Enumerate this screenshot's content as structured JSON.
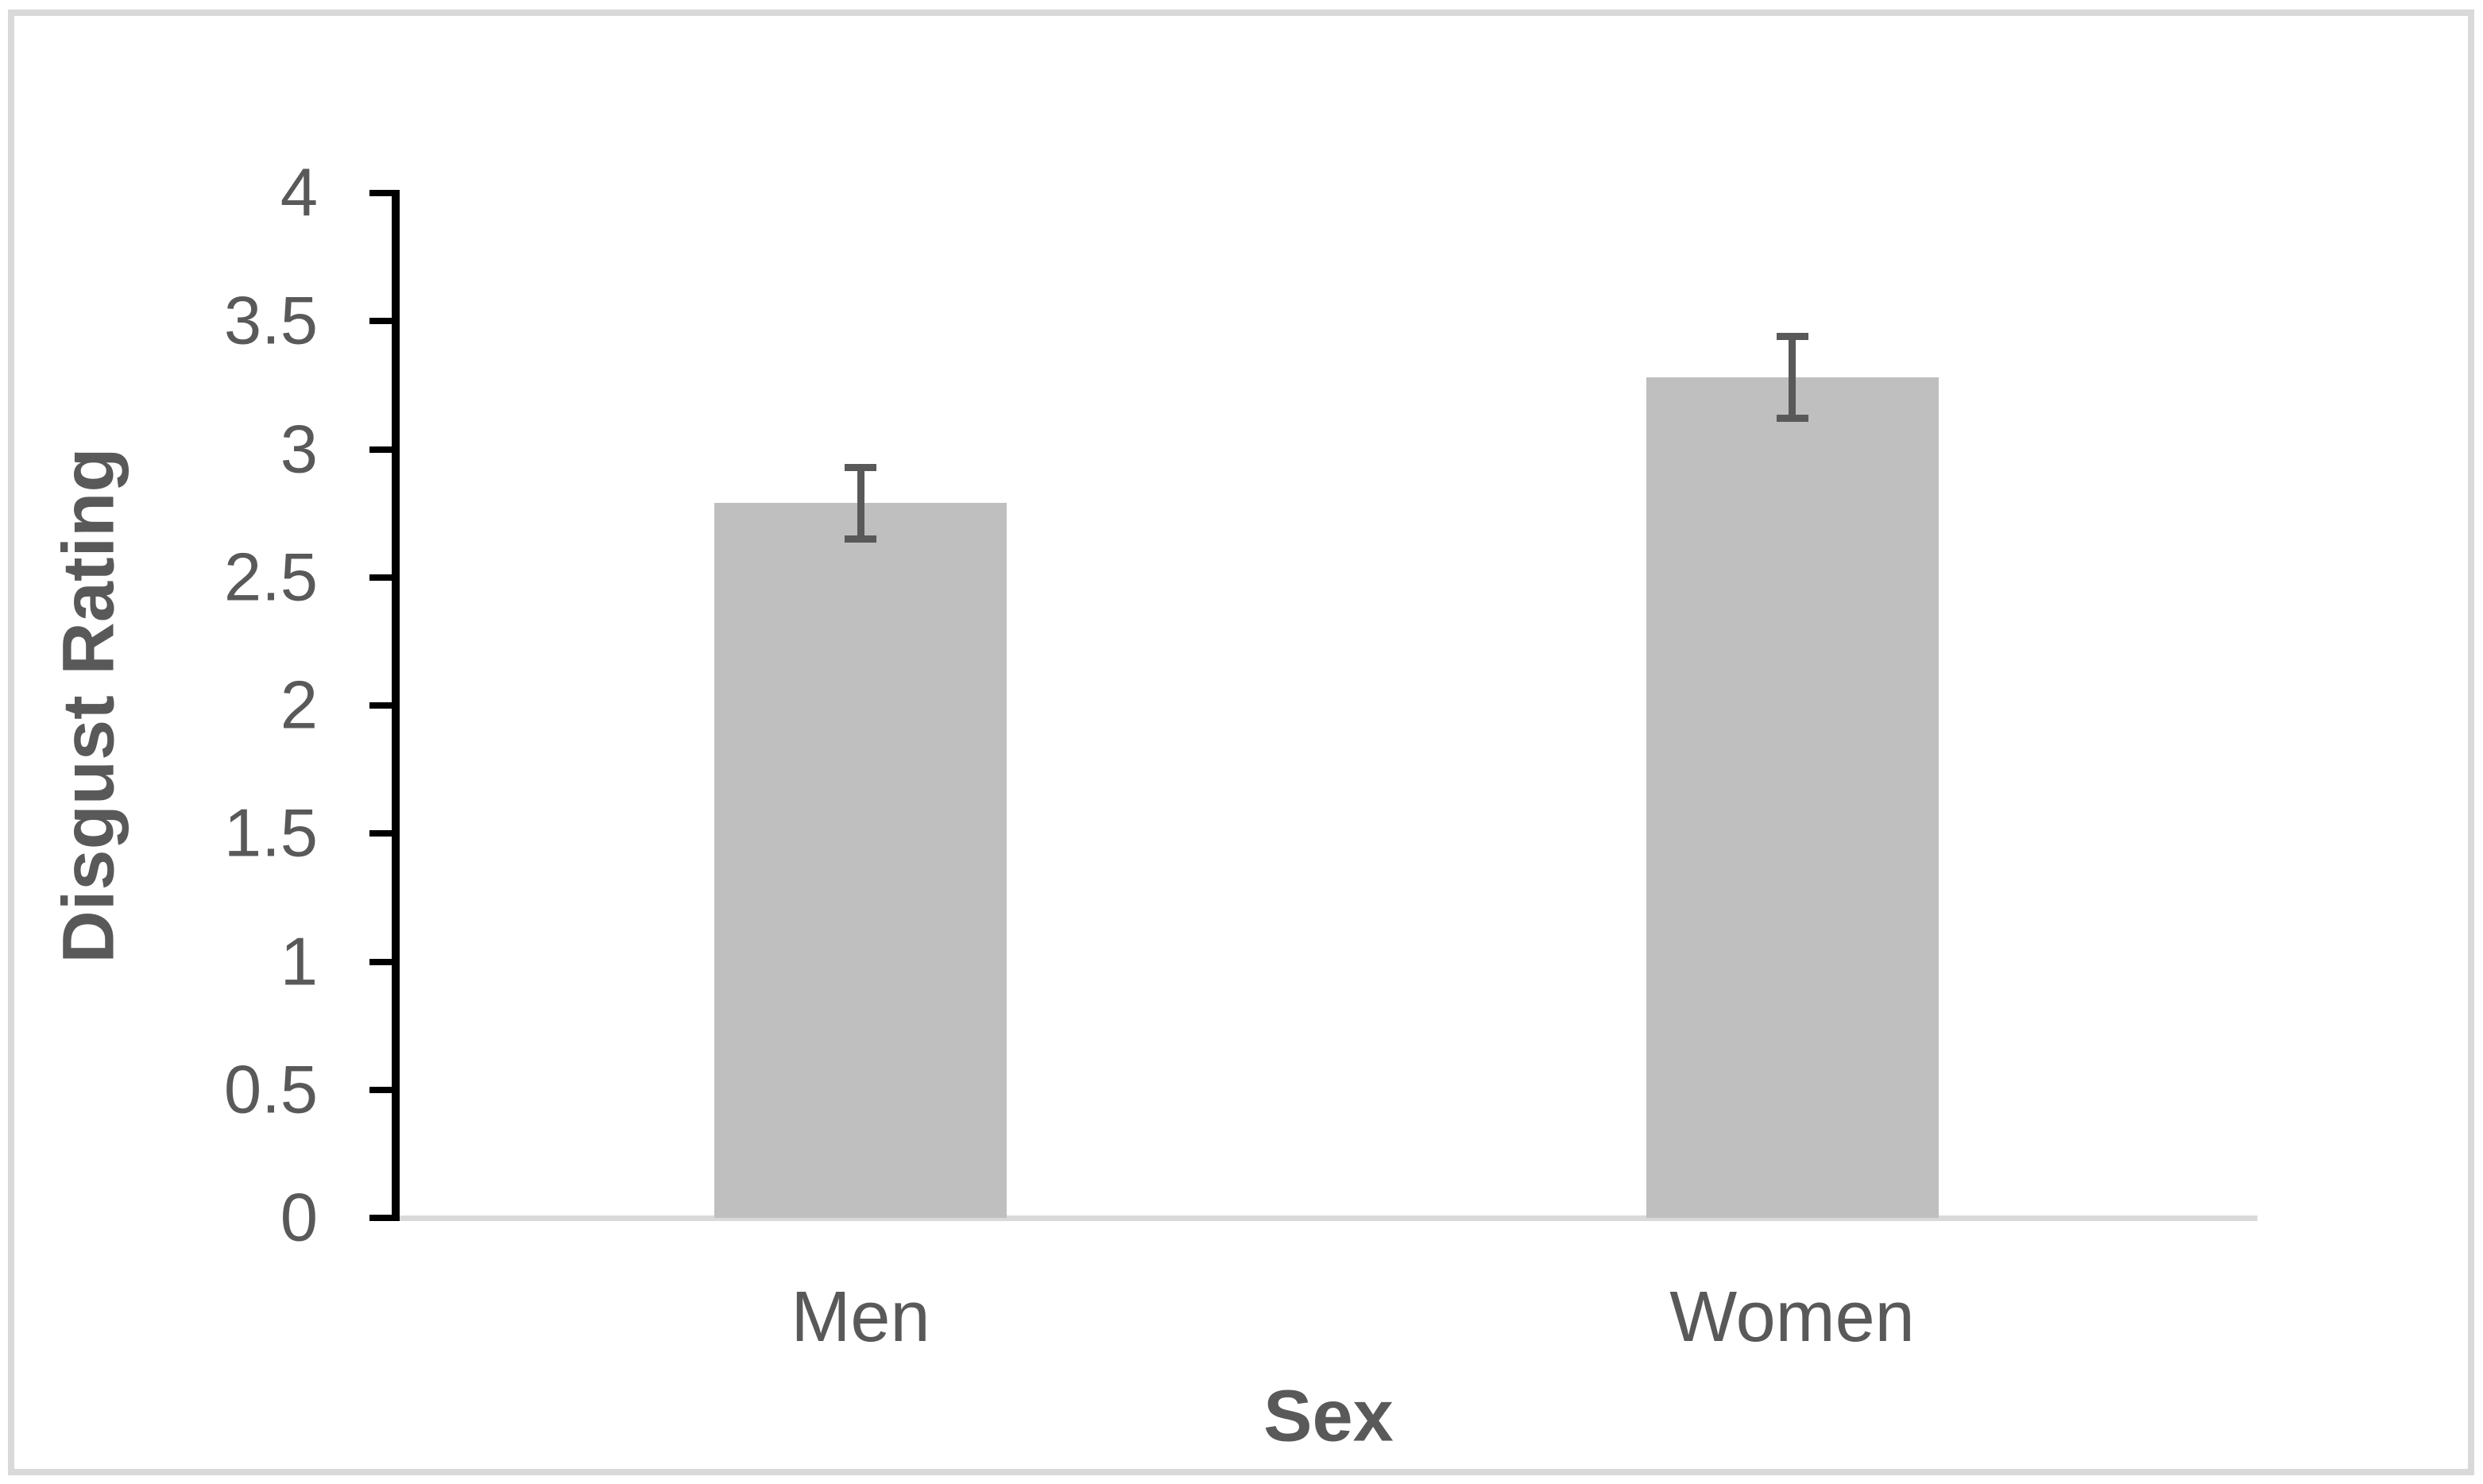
{
  "chart_data": {
    "type": "bar",
    "title": "",
    "categories": [
      "Men",
      "Women"
    ],
    "values": [
      2.79,
      3.28
    ],
    "error_bars": [
      0.14,
      0.16
    ],
    "xlabel": "Sex",
    "ylabel": "Disgust Rating",
    "ylim": [
      0,
      4
    ],
    "ytick_step": 0.5,
    "yticks": [
      "0",
      "0.5",
      "1",
      "1.5",
      "2",
      "2.5",
      "3",
      "3.5",
      "4"
    ],
    "grid": false,
    "legend": false,
    "layout_hints": {
      "bar_orientation": "vertical",
      "error_bar_style": "capped, both directions",
      "axis_line": "left only, black",
      "baseline": "light gray under bars"
    },
    "colors": {
      "bar_fill": "#bfbfbf",
      "error_bar": "#595959",
      "axis_line": "#000000",
      "baseline": "#d9d9d9",
      "text": "#595959",
      "figure_border": "#d9d9d9",
      "background": "#ffffff"
    }
  }
}
